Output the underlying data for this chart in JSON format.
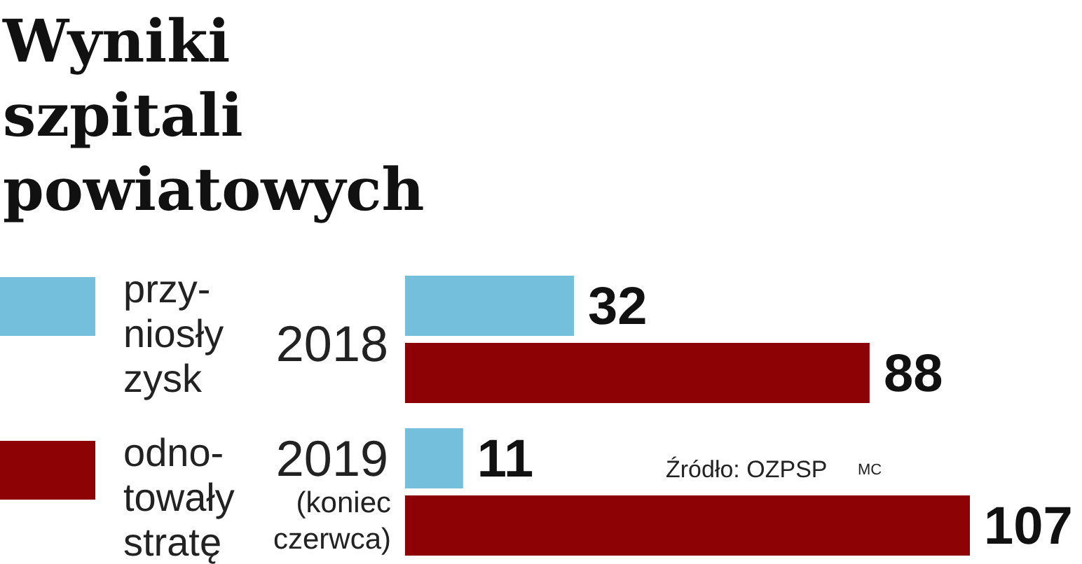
{
  "chart_data": {
    "type": "bar",
    "orientation": "horizontal",
    "title": "Wyniki\nszpitali\npowiatowych",
    "categories": [
      "2018",
      "2019\n(koniec\nczerwca)"
    ],
    "series": [
      {
        "name": "przy-\nniosły\nzysk",
        "color": "#74bfdb",
        "values": [
          32,
          11
        ]
      },
      {
        "name": "odno-\ntowały\nstratę",
        "color": "#8c0205",
        "values": [
          88,
          107
        ]
      }
    ],
    "data_labels": true,
    "legend": "left",
    "annotations": [
      "Źródło: OZPSP",
      "MC"
    ]
  }
}
